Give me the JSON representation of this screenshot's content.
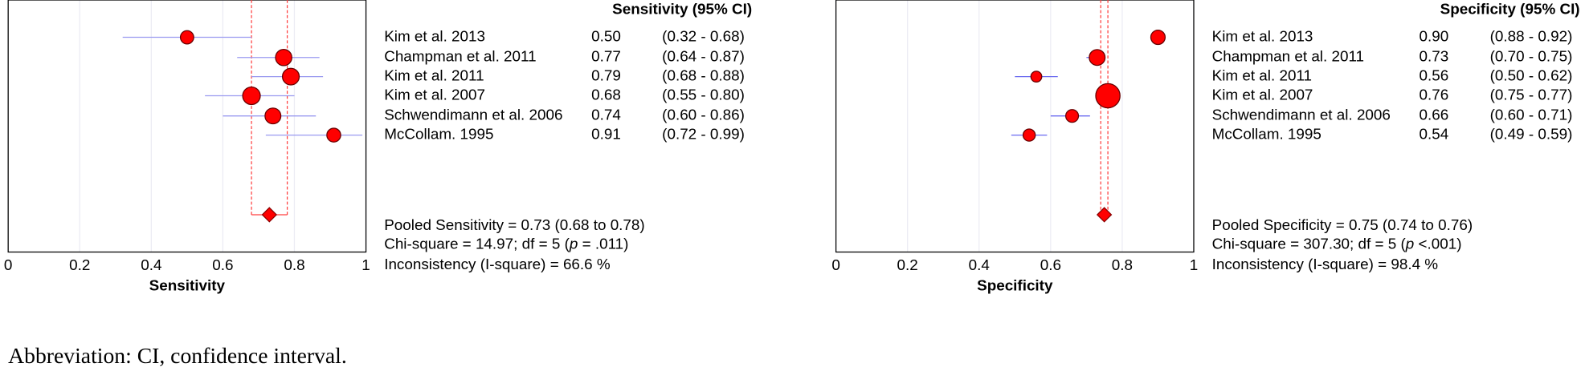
{
  "chart_data": [
    {
      "type": "forest",
      "title": "Sensitivity (95% CI)",
      "x_label": "Sensitivity",
      "categories": [
        "Kim et al. 2013",
        "Champman et al. 2011",
        "Kim et al. 2011",
        "Kim et al. 2007",
        "Schwendimann et al. 2006",
        "McCollam. 1995"
      ],
      "values": [
        0.5,
        0.77,
        0.79,
        0.68,
        0.74,
        0.91
      ],
      "value_labels": [
        "0.50",
        "0.77",
        "0.79",
        "0.68",
        "0.74",
        "0.91"
      ],
      "lower": [
        0.32,
        0.64,
        0.68,
        0.55,
        0.6,
        0.72
      ],
      "upper": [
        0.68,
        0.87,
        0.88,
        0.8,
        0.86,
        0.99
      ],
      "ci_labels": [
        "(0.32 - 0.68)",
        "(0.64 - 0.87)",
        "(0.68 - 0.88)",
        "(0.55 - 0.80)",
        "(0.60 - 0.86)",
        "(0.72 - 0.99)"
      ],
      "weights": [
        12,
        18,
        19,
        21,
        17,
        13
      ],
      "color": "#ff0000",
      "ci_color": "#9a9af0",
      "pooled": {
        "value": 0.73,
        "lower": 0.68,
        "upper": 0.78,
        "label": "Pooled Sensitivity = 0.73 (0.68 to 0.78)"
      },
      "chi_square": [
        "Chi-square = 14.97; df =  5 (",
        "p",
        " = .011)"
      ],
      "inconsistency": "Inconsistency (I-square) = 66.6 %",
      "xlim": [
        0,
        1
      ],
      "xticks": [
        0,
        0.2,
        0.4,
        0.6,
        0.8,
        1
      ],
      "grid": true
    },
    {
      "type": "forest",
      "title": "Specificity (95% CI)",
      "x_label": "Specificity",
      "categories": [
        "Kim et al. 2013",
        "Champman et al. 2011",
        "Kim et al. 2011",
        "Kim et al. 2007",
        "Schwendimann et al. 2006",
        "McCollam. 1995"
      ],
      "values": [
        0.9,
        0.73,
        0.56,
        0.76,
        0.66,
        0.54
      ],
      "value_labels": [
        "0.90",
        "0.73",
        "0.56",
        "0.76",
        "0.66",
        "0.54"
      ],
      "lower": [
        0.88,
        0.7,
        0.5,
        0.75,
        0.6,
        0.49
      ],
      "upper": [
        0.92,
        0.75,
        0.62,
        0.77,
        0.71,
        0.59
      ],
      "ci_labels": [
        "(0.88 - 0.92)",
        "(0.70 - 0.75)",
        "(0.50 - 0.62)",
        "(0.75 - 0.77)",
        "(0.60 - 0.71)",
        "(0.49 - 0.59)"
      ],
      "weights": [
        14,
        17,
        8,
        40,
        11,
        10
      ],
      "color": "#ff0000",
      "ci_color": "#6a6af0",
      "pooled": {
        "value": 0.75,
        "lower": 0.74,
        "upper": 0.76,
        "label": "Pooled Specificity = 0.75 (0.74 to 0.76)"
      },
      "chi_square": [
        "Chi-square = 307.30; df =  5 (",
        "p",
        " <.001)"
      ],
      "inconsistency": "Inconsistency (I-square) = 98.4 %",
      "xlim": [
        0,
        1
      ],
      "xticks": [
        0,
        0.2,
        0.4,
        0.6,
        0.8,
        1
      ],
      "grid": true
    }
  ],
  "footnote": "Abbreviation: CI, confidence interval."
}
